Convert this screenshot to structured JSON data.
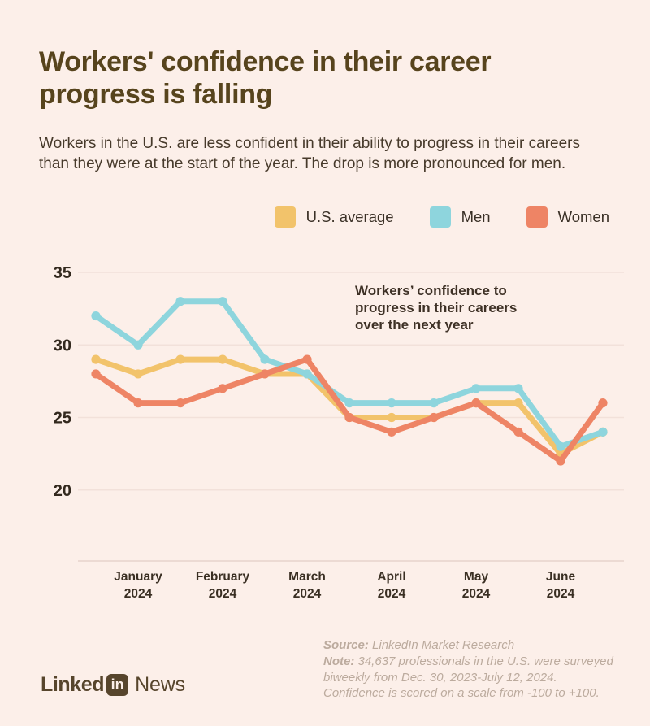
{
  "page": {
    "background": "#fcefe9"
  },
  "header": {
    "title": "Workers' confidence in their career progress is falling",
    "subtitle": "Workers in the U.S. are less confident in their ability to progress in their careers than they were at the start of the year. The drop is more pronounced for men."
  },
  "chart_data": {
    "type": "line",
    "annotation": "Workers’ confidence to\nprogress in their careers\nover the next year",
    "x_axis": {
      "months": [
        "January",
        "February",
        "March",
        "April",
        "May",
        "June"
      ],
      "year": "2024",
      "points_per_month": 2
    },
    "y_axis": {
      "ticks": [
        35,
        30,
        25,
        20
      ],
      "min": 15,
      "max": 35,
      "grid": true
    },
    "legend_position": "top-right",
    "series": [
      {
        "name": "U.S. average",
        "color": "#f2c36b",
        "values": [
          29,
          28,
          29,
          29,
          28,
          28,
          25,
          25,
          25,
          26,
          26,
          22.5,
          24
        ]
      },
      {
        "name": "Men",
        "color": "#8ed5dd",
        "values": [
          32,
          30,
          33,
          33,
          29,
          28,
          26,
          26,
          26,
          27,
          27,
          23,
          24
        ]
      },
      {
        "name": "Women",
        "color": "#ee8465",
        "values": [
          28,
          26,
          26,
          27,
          28,
          29,
          25,
          24,
          25,
          26,
          24,
          22,
          26
        ]
      }
    ]
  },
  "footer": {
    "source_label": "Source:",
    "source_text": " LinkedIn Market Research",
    "note_label": "Note:",
    "note_text": " 34,637 professionals in the U.S. were surveyed biweekly from Dec. 30, 2023-July 12, 2024. Confidence is scored on a scale from -100 to +100.",
    "logo": {
      "part1": "Linked",
      "badge": "in",
      "part2": "News"
    }
  },
  "colors": {
    "background": "#fcefe9",
    "title": "#57441d",
    "subtitle": "#473a2b",
    "axis_text": "#33291e",
    "gridline": "#f2e1da",
    "axis_line": "#e7d4cc",
    "note_text": "#bcab9e",
    "logo": "#57452c"
  }
}
